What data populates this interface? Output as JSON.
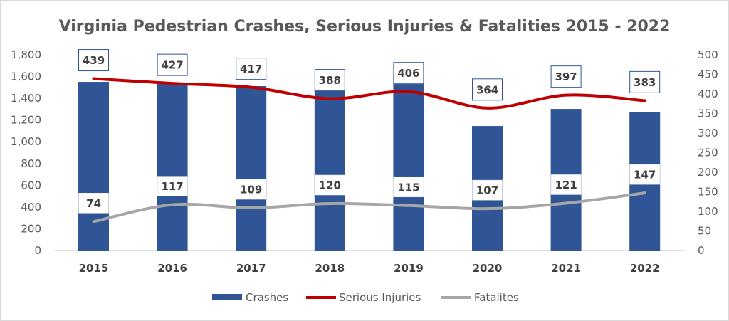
{
  "chart_data": {
    "type": "bar+line",
    "title": "Virginia Pedestrian Crashes, Serious Injuries & Fatalities 2015 - 2022",
    "categories": [
      "2015",
      "2016",
      "2017",
      "2018",
      "2019",
      "2020",
      "2021",
      "2022"
    ],
    "series": [
      {
        "name": "Crashes",
        "type": "bar",
        "axis": "left",
        "color": "#2F5597",
        "values": [
          1551,
          1545,
          1512,
          1486,
          1531,
          1145,
          1302,
          1270
        ]
      },
      {
        "name": "Serious Injuries",
        "type": "line",
        "axis": "right",
        "color": "#C00000",
        "values": [
          439,
          427,
          417,
          388,
          406,
          364,
          397,
          383
        ],
        "labels": [
          "439",
          "427",
          "417",
          "388",
          "406",
          "364",
          "397",
          "383"
        ]
      },
      {
        "name": "Fatalites",
        "type": "line",
        "axis": "right",
        "color": "#A6A6A6",
        "values": [
          74,
          117,
          109,
          120,
          115,
          107,
          121,
          147
        ],
        "labels": [
          "74",
          "117",
          "109",
          "120",
          "115",
          "107",
          "121",
          "147"
        ]
      }
    ],
    "left_axis": {
      "min": 0,
      "max": 1800,
      "step": 200,
      "ticks": [
        "0",
        "200",
        "400",
        "600",
        "800",
        "1,000",
        "1,200",
        "1,400",
        "1,600",
        "1,800"
      ]
    },
    "right_axis": {
      "min": 0,
      "max": 500,
      "step": 50,
      "ticks": [
        "0",
        "50",
        "100",
        "150",
        "200",
        "250",
        "300",
        "350",
        "400",
        "450",
        "500"
      ]
    },
    "grid": false,
    "legend": {
      "placement": "bottom",
      "entries": [
        "Crashes",
        "Serious Injuries",
        "Fatalites"
      ]
    }
  }
}
